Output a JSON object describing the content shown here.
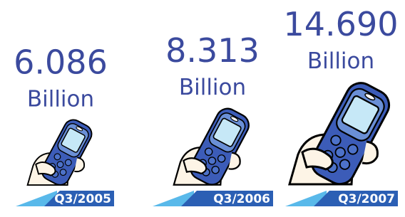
{
  "chart_data": {
    "type": "pictograph",
    "categories": [
      "Q3/2005",
      "Q3/2006",
      "Q3/2007"
    ],
    "values": [
      6.086,
      8.313,
      14.69
    ],
    "value_labels": [
      "6.086",
      "8.313",
      "14.690"
    ],
    "unit_label": "Billion",
    "color": "#3b4a9e"
  }
}
